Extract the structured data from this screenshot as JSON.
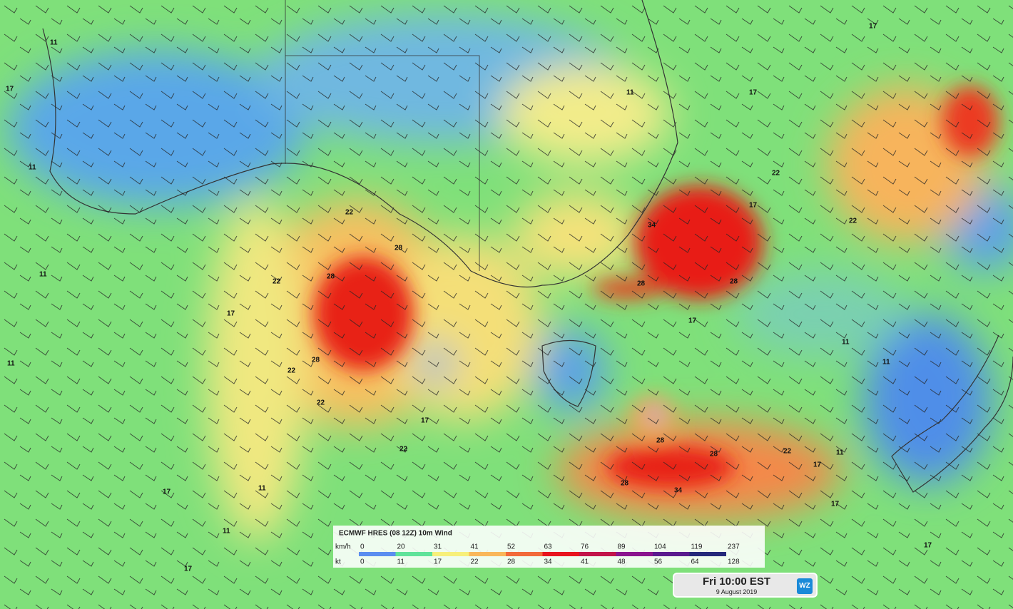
{
  "legend": {
    "title": "ECMWF HRES (08 12Z) 10m Wind",
    "rows": [
      {
        "unit": "km/h",
        "values": [
          0,
          20,
          31,
          41,
          52,
          63,
          76,
          89,
          104,
          119,
          237
        ]
      },
      {
        "unit": "kt",
        "values": [
          0,
          11,
          17,
          22,
          28,
          34,
          41,
          48,
          56,
          64,
          128
        ]
      }
    ],
    "colors": [
      "#5b8ef0",
      "#5fe39a",
      "#f7f07a",
      "#f9b75a",
      "#f26a3a",
      "#e8141e",
      "#c2144a",
      "#8a148e",
      "#5a1a8e",
      "#25287a"
    ]
  },
  "time_box": {
    "time": "Fri 10:00 EST",
    "date": "9 August 2019",
    "logo": "WZ"
  },
  "map_labels": [
    11,
    11,
    17,
    11,
    11,
    17,
    17,
    11,
    11,
    22,
    28,
    28,
    22,
    28,
    22,
    17,
    22,
    22,
    17,
    28,
    34,
    28,
    28,
    17,
    17,
    22,
    11,
    11,
    17,
    11,
    28,
    28,
    34,
    22,
    17,
    17,
    17,
    22,
    11,
    17
  ]
}
